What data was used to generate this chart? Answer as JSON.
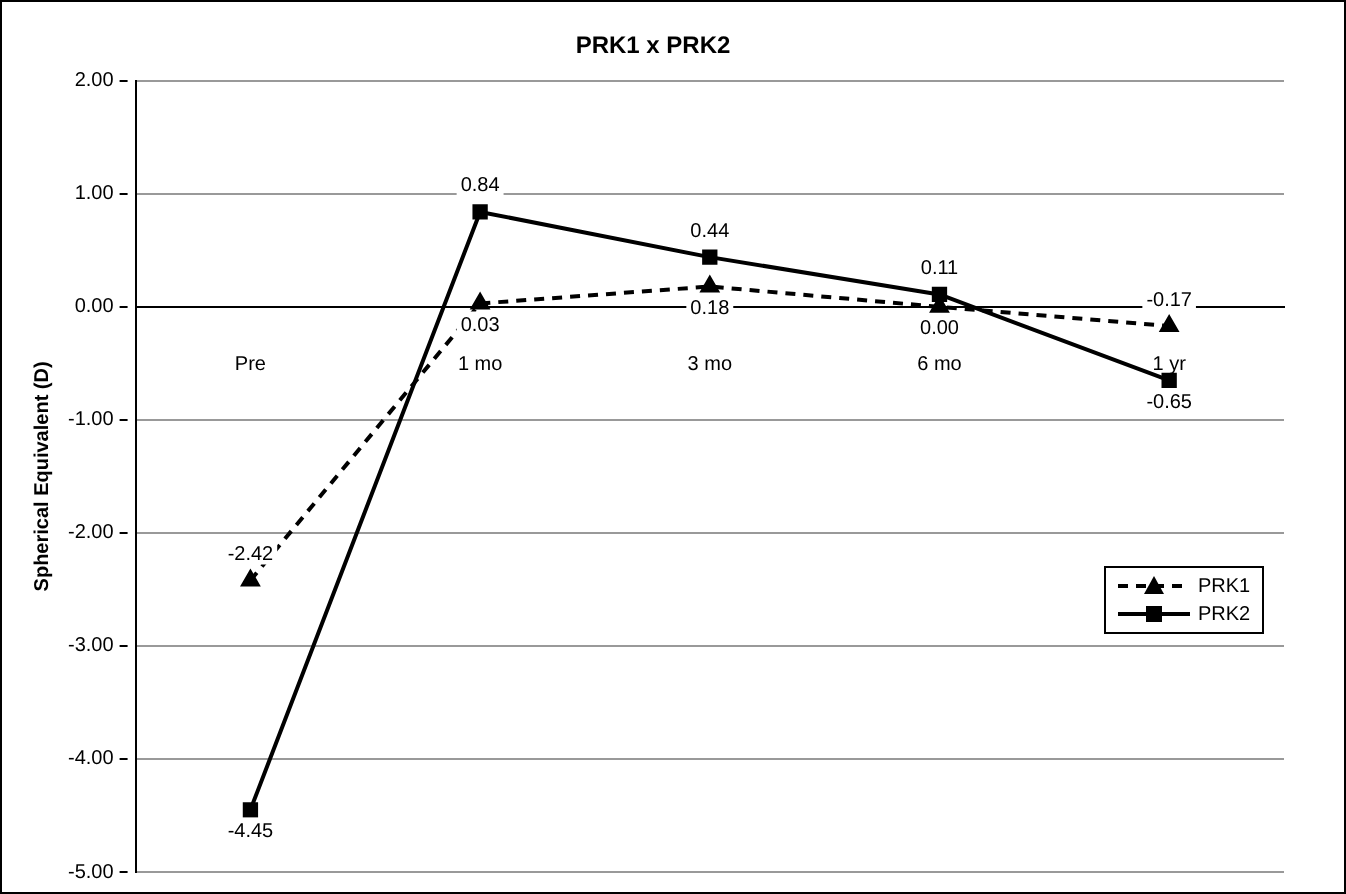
{
  "chart_data": {
    "type": "line",
    "title": "PRK1 x PRK2",
    "ylabel": "Spherical Equivalent (D)",
    "categories": [
      "Pre",
      "1 mo",
      "3 mo",
      "6 mo",
      "1 yr"
    ],
    "series": [
      {
        "name": "PRK1",
        "color": "#000000",
        "marker": "triangle",
        "line_style": "dashed",
        "values": [
          -2.42,
          0.03,
          0.18,
          0.0,
          -0.17
        ],
        "value_labels": [
          "-2.42",
          "0.03",
          "0.18",
          "0.00",
          "-0.17"
        ]
      },
      {
        "name": "PRK2",
        "color": "#000000",
        "marker": "square",
        "line_style": "solid",
        "values": [
          -4.45,
          0.84,
          0.44,
          0.11,
          -0.65
        ],
        "value_labels": [
          "-4.45",
          "0.84",
          "0.44",
          "0.11",
          "-0.65"
        ]
      }
    ],
    "ylim": [
      -5,
      2
    ],
    "yticks": [
      {
        "value": 2,
        "label": "2.00"
      },
      {
        "value": 1,
        "label": "1.00"
      },
      {
        "value": 0,
        "label": "0.00"
      },
      {
        "value": -1,
        "label": "-1.00"
      },
      {
        "value": -2,
        "label": "-2.00"
      },
      {
        "value": -3,
        "label": "-3.00"
      },
      {
        "value": -4,
        "label": "-4.00"
      },
      {
        "value": -5,
        "label": "-5.00"
      }
    ],
    "grid": "y",
    "legend": "right"
  }
}
